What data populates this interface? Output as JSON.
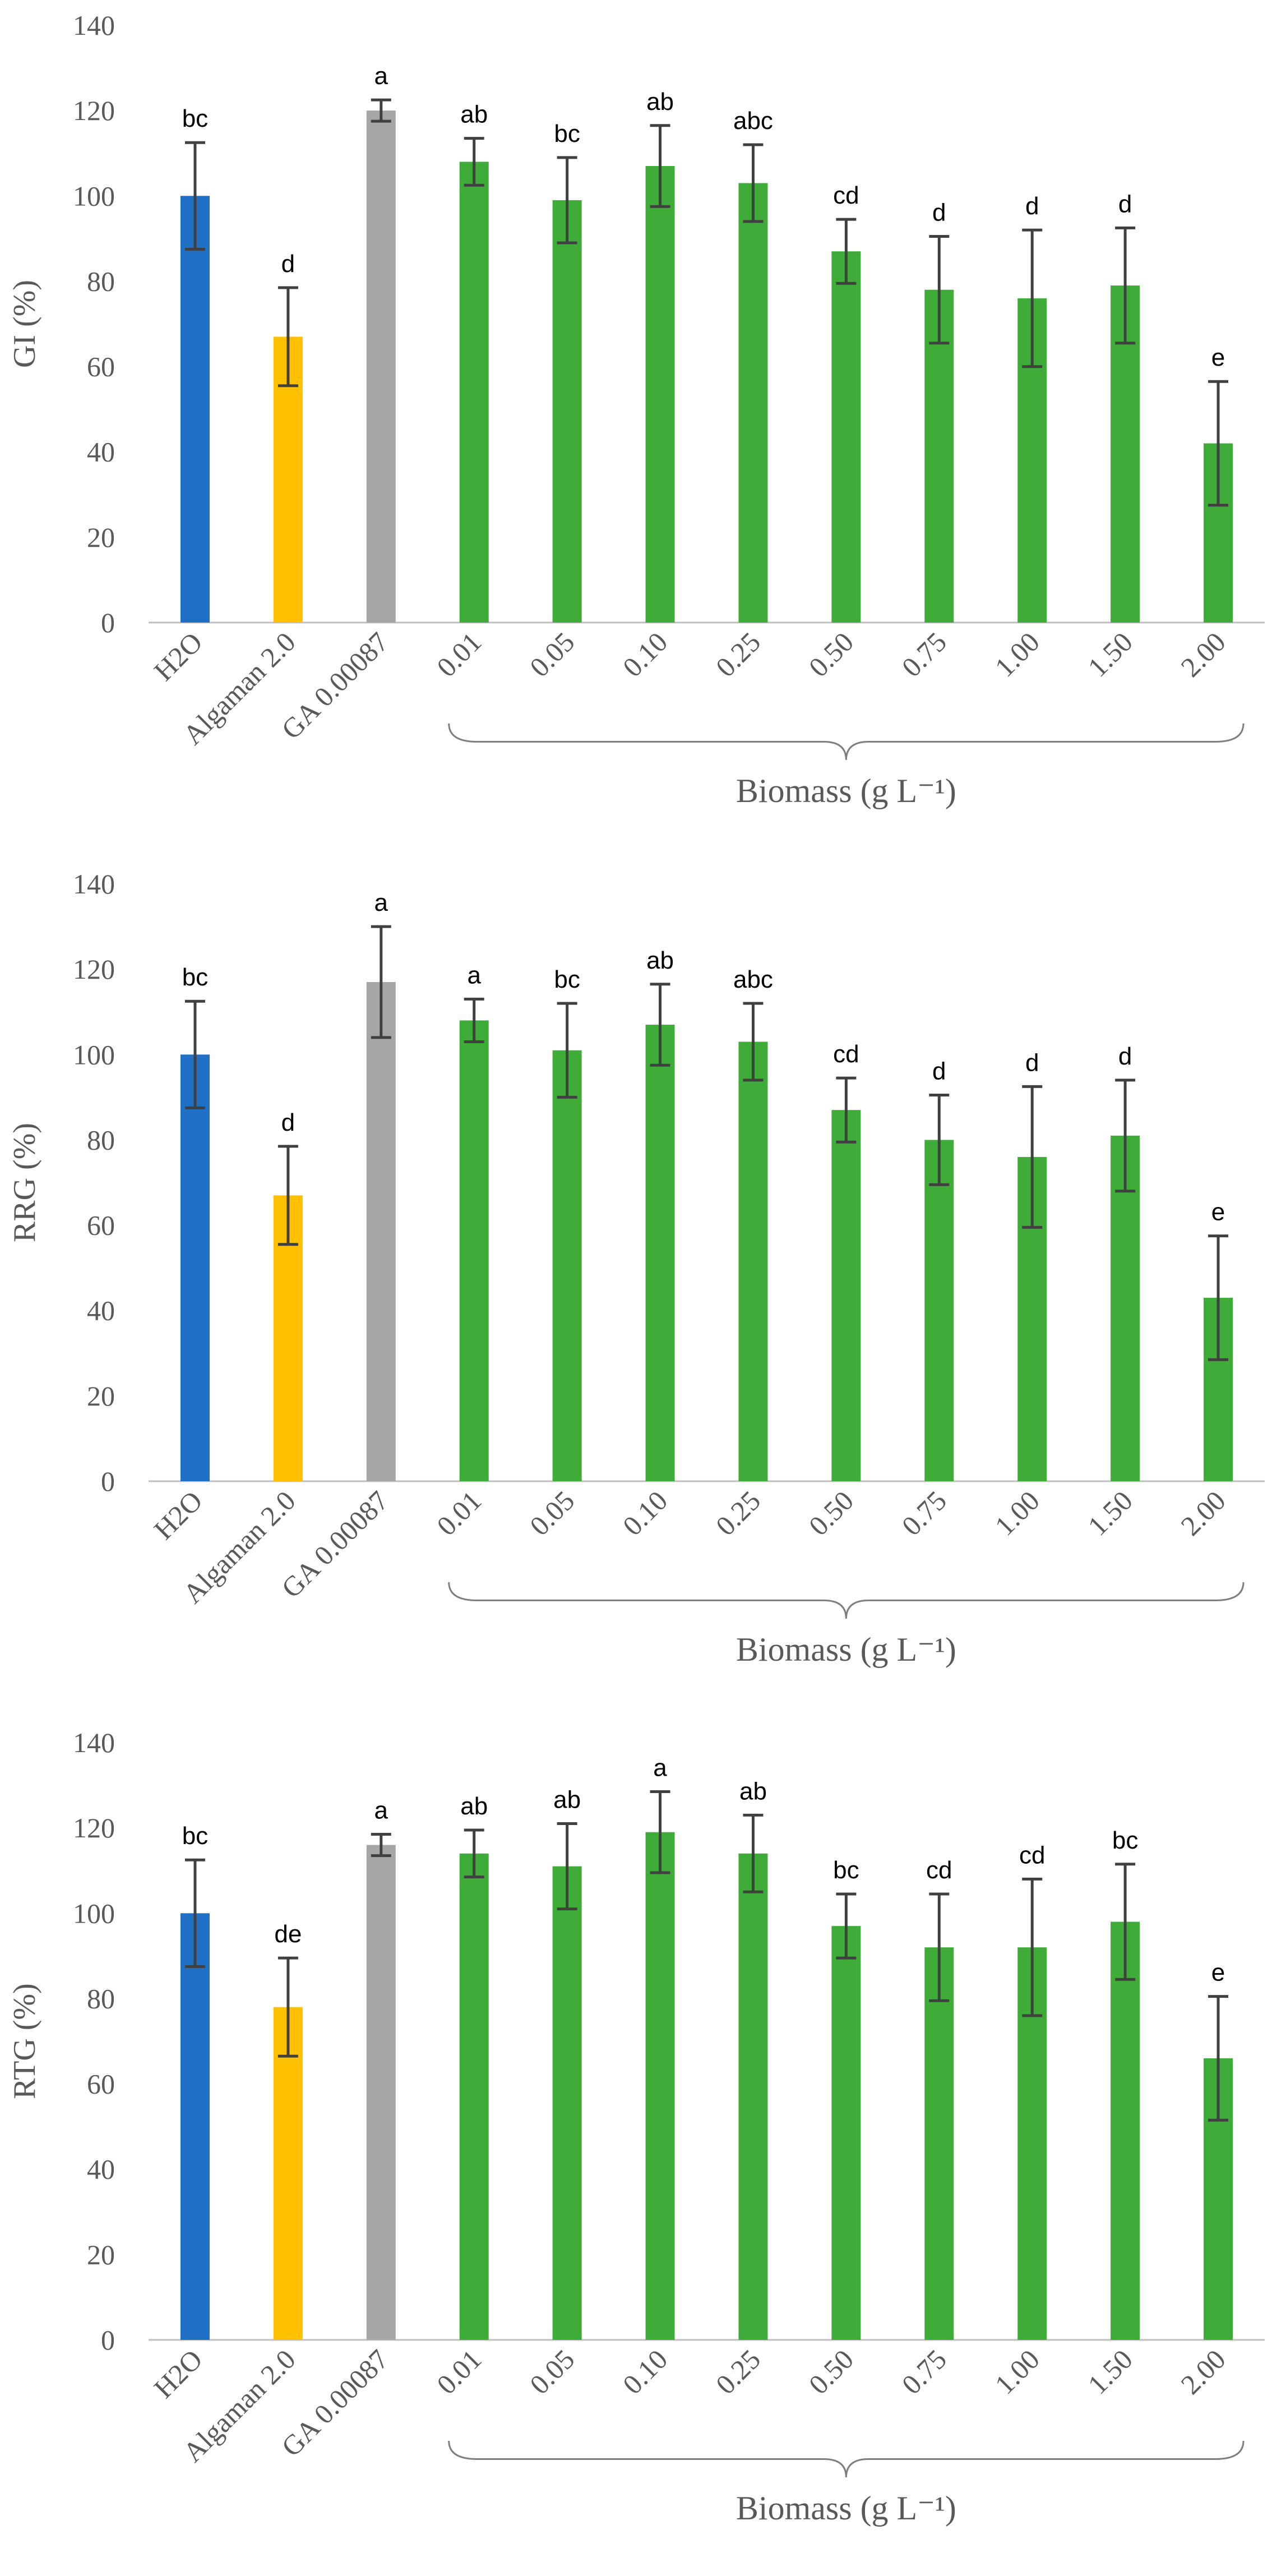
{
  "categories": [
    "H2O",
    "Algaman 2.0",
    "GA 0.00087",
    "0.01",
    "0.05",
    "0.10",
    "0.25",
    "0.50",
    "0.75",
    "1.00",
    "1.50",
    "2.00"
  ],
  "colors": {
    "water": "#1f6fc5",
    "algaman": "#ffc000",
    "ga": "#a6a6a6",
    "biomass": "#3fac3a",
    "axis": "#bfbfbf",
    "text": "#595959",
    "error_bar": "#404040"
  },
  "chart_data": [
    {
      "type": "bar",
      "title": "",
      "ylabel": "GI (%)",
      "xlabel": "Biomass (g L⁻¹)",
      "group_label": "Biomass (g L⁻¹)",
      "ylim": [
        0,
        140
      ],
      "yticks": [
        "0",
        "20",
        "40",
        "60",
        "80",
        "100",
        "120",
        "140"
      ],
      "categories": [
        "H2O",
        "Algaman 2.0",
        "GA 0.00087",
        "0.01",
        "0.05",
        "0.10",
        "0.25",
        "0.50",
        "0.75",
        "1.00",
        "1.50",
        "2.00"
      ],
      "values": [
        100,
        67,
        120,
        108,
        99,
        107,
        103,
        87,
        78,
        76,
        79,
        42
      ],
      "errors": [
        12.5,
        11.5,
        2.5,
        5.5,
        10,
        9.5,
        9,
        7.5,
        12.5,
        16,
        13.5,
        14.5
      ],
      "letters": [
        "bc",
        "d",
        "a",
        "ab",
        "bc",
        "ab",
        "abc",
        "cd",
        "d",
        "d",
        "d",
        "e"
      ]
    },
    {
      "type": "bar",
      "title": "",
      "ylabel": "RRG (%)",
      "xlabel": "Biomass (g L⁻¹)",
      "group_label": "Biomass (g L⁻¹)",
      "ylim": [
        0,
        140
      ],
      "yticks": [
        "0",
        "20",
        "40",
        "60",
        "80",
        "100",
        "120",
        "140"
      ],
      "categories": [
        "H2O",
        "Algaman 2.0",
        "GA 0.00087",
        "0.01",
        "0.05",
        "0.10",
        "0.25",
        "0.50",
        "0.75",
        "1.00",
        "1.50",
        "2.00"
      ],
      "values": [
        100,
        67,
        117,
        108,
        101,
        107,
        103,
        87,
        80,
        76,
        81,
        43
      ],
      "errors": [
        12.5,
        11.5,
        13,
        5,
        11,
        9.5,
        9,
        7.5,
        10.5,
        16.5,
        13,
        14.5
      ],
      "letters": [
        "bc",
        "d",
        "a",
        "a",
        "bc",
        "ab",
        "abc",
        "cd",
        "d",
        "d",
        "d",
        "e"
      ]
    },
    {
      "type": "bar",
      "title": "",
      "ylabel": "RTG (%)",
      "xlabel": "Biomass (g L⁻¹)",
      "group_label": "Biomass (g L⁻¹)",
      "ylim": [
        0,
        140
      ],
      "yticks": [
        "0",
        "20",
        "40",
        "60",
        "80",
        "100",
        "120",
        "140"
      ],
      "categories": [
        "H2O",
        "Algaman 2.0",
        "GA 0.00087",
        "0.01",
        "0.05",
        "0.10",
        "0.25",
        "0.50",
        "0.75",
        "1.00",
        "1.50",
        "2.00"
      ],
      "values": [
        100,
        78,
        116,
        114,
        111,
        119,
        114,
        97,
        92,
        92,
        98,
        66
      ],
      "errors": [
        12.5,
        11.5,
        2.5,
        5.5,
        10,
        9.5,
        9,
        7.5,
        12.5,
        16,
        13.5,
        14.5
      ],
      "letters": [
        "bc",
        "de",
        "a",
        "ab",
        "ab",
        "a",
        "ab",
        "bc",
        "cd",
        "cd",
        "bc",
        "e"
      ]
    }
  ]
}
